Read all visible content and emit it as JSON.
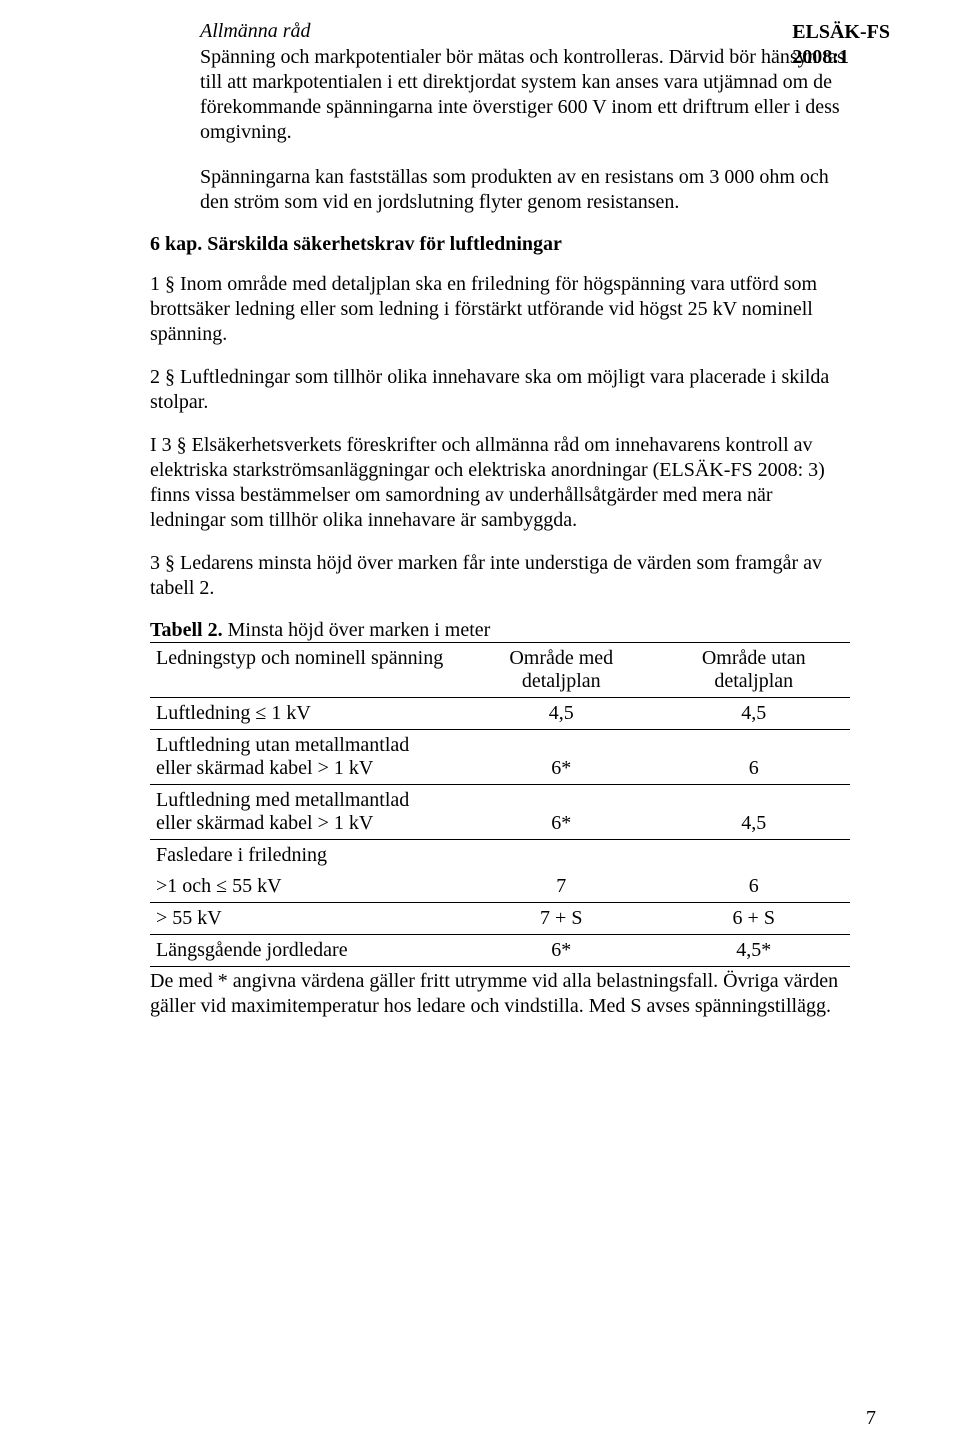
{
  "header": {
    "line1": "ELSÄK-FS",
    "line2": "2008:1"
  },
  "advice": {
    "heading": "Allmänna råd",
    "para1": "Spänning och markpotentialer bör mätas och kontrolleras. Därvid bör hänsyn tas till att markpotentialen i ett direktjordat system kan anses vara utjämnad om de förekommande spänningarna inte överstiger 600 V inom ett driftrum eller i dess omgivning.",
    "para2": "Spänningarna kan fastställas som produkten av en resistans om 3 000 ohm och den ström som vid en jordslutning flyter genom resistansen."
  },
  "chapter": "6 kap. Särskilda säkerhetskrav för luftledningar",
  "para_1": "1 §   Inom område med detaljplan ska en friledning för högspänning vara utförd som brottsäker ledning eller som ledning i förstärkt utförande vid högst 25 kV nominell spänning.",
  "para_2": "2 §   Luftledningar som tillhör olika innehavare ska om möjligt vara placerade i skilda stolpar.",
  "para_3": "I 3 § Elsäkerhetsverkets föreskrifter och allmänna råd om innehavarens kontroll av elektriska starkströmsanläggningar och elektriska anordningar (ELSÄK-FS 2008: 3) finns vissa bestämmelser om samordning av underhållsåtgärder med mera när ledningar som tillhör olika innehavare är sambyggda.",
  "para_4": "3 §   Ledarens minsta höjd över marken får inte understiga de värden som framgår av tabell 2.",
  "table": {
    "caption_bold": "Tabell 2.",
    "caption_rest": " Minsta höjd över marken i meter",
    "header_col1": "Ledningstyp och nominell spänning",
    "header_col2a": "Område med",
    "header_col2b": "detaljplan",
    "header_col3a": "Område utan",
    "header_col3b": "detaljplan",
    "rows": {
      "r1_c1": "Luftledning ≤ 1 kV",
      "r1_c2": "4,5",
      "r1_c3": "4,5",
      "r2_c1a": "Luftledning utan metallmantlad",
      "r2_c1b": "eller skärmad kabel > 1 kV",
      "r2_c2": "6*",
      "r2_c3": "6",
      "r3_c1a": "Luftledning med metallmantlad",
      "r3_c1b": "eller skärmad kabel > 1 kV",
      "r3_c2": "6*",
      "r3_c3": "4,5",
      "r4_c1": "Fasledare i friledning",
      "r5_c1": ">1 och ≤ 55 kV",
      "r5_c2": "7",
      "r5_c3": "6",
      "r6_c1": "> 55 kV",
      "r6_c2": "7 + S",
      "r6_c3": "6 + S",
      "r7_c1": "Längsgående jordledare",
      "r7_c2": "6*",
      "r7_c3": "4,5*"
    }
  },
  "footnote": "De med * angivna värdena gäller fritt utrymme vid alla belastningsfall. Övriga värden gäller vid maximitemperatur hos ledare och vindstilla. Med S avses spänningstillägg.",
  "page_number": "7"
}
